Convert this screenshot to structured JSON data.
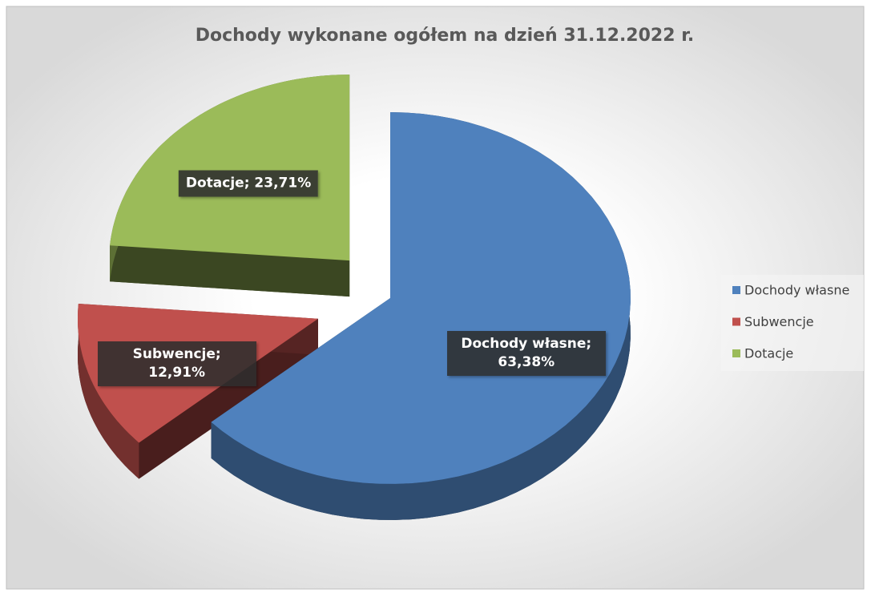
{
  "chart_data": {
    "type": "pie",
    "title": "Dochody wykonane ogółem na dzień 31.12.2022 r.",
    "categories": [
      "Dochody własne",
      "Subwencje",
      "Dotacje"
    ],
    "values": [
      63.38,
      12.91,
      23.71
    ],
    "value_labels": [
      "Dochody własne; 63,38%",
      "Subwencje; 12,91%",
      "Dotacje; 23,71%"
    ],
    "colors": [
      "#4f81bd",
      "#c0504d",
      "#9bbb59"
    ],
    "legend": "right"
  }
}
